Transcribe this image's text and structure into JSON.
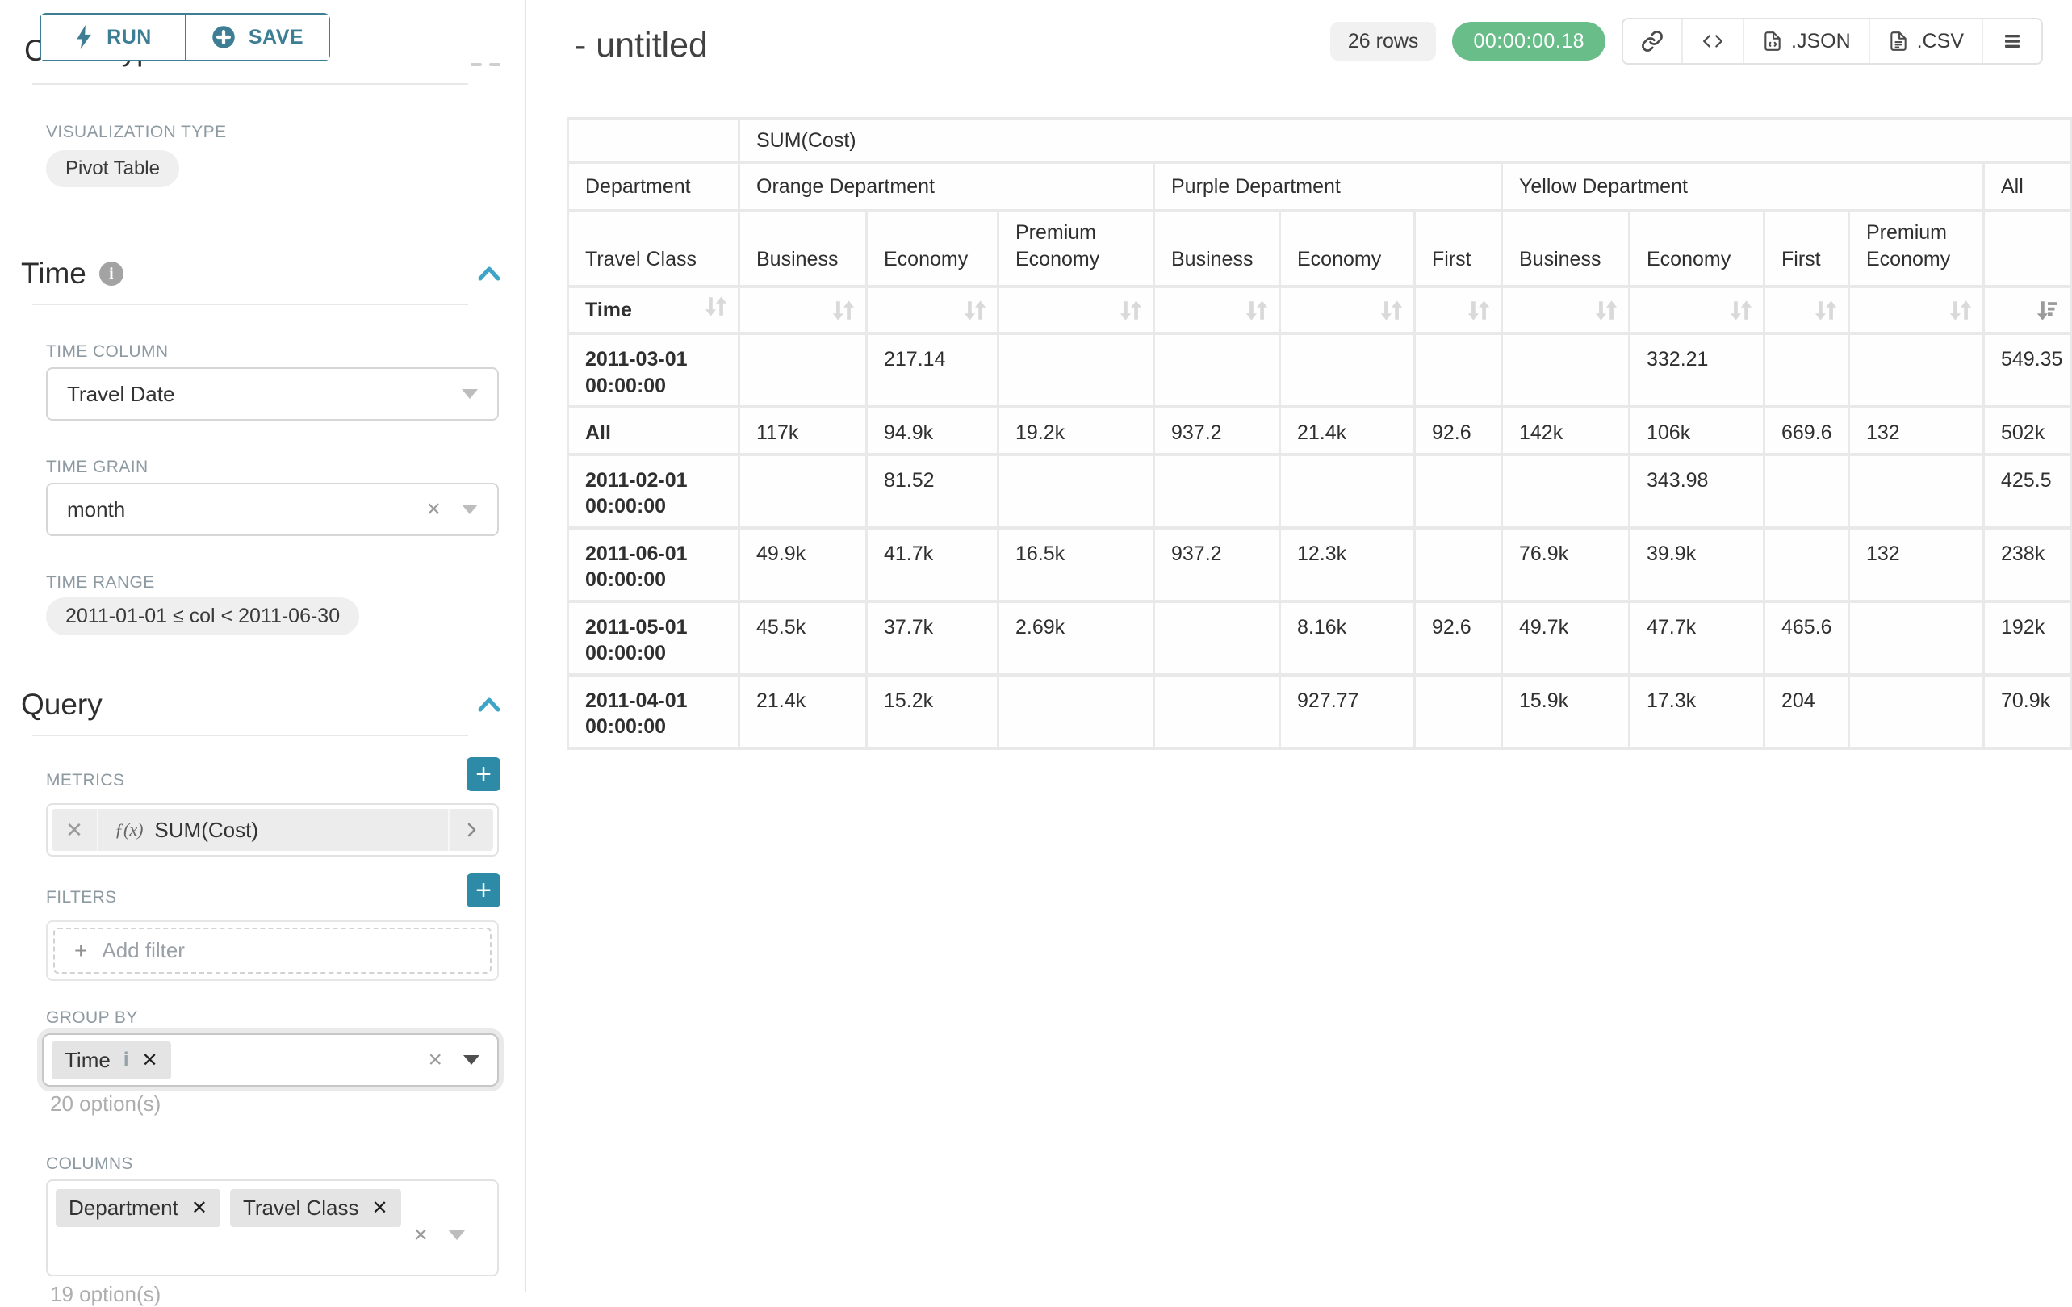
{
  "colors": {
    "accent_teal": "#2e8ba8",
    "button_teal": "#3e7e95",
    "timer_green": "#69bd89",
    "chevron_teal": "#3fa5c6"
  },
  "sidebar": {
    "run_label": "RUN",
    "save_label": "SAVE",
    "chart_type_heading": "Chart Type",
    "viz_type_label": "VISUALIZATION TYPE",
    "viz_type_value": "Pivot Table",
    "time_section": "Time",
    "time_column_label": "TIME COLUMN",
    "time_column_value": "Travel Date",
    "time_grain_label": "TIME GRAIN",
    "time_grain_value": "month",
    "time_range_label": "TIME RANGE",
    "time_range_value": "2011-01-01 ≤ col < 2011-06-30",
    "query_section": "Query",
    "metrics_label": "METRICS",
    "metric_fx": "ƒ(x)",
    "metric_value": "SUM(Cost)",
    "filters_label": "FILTERS",
    "add_filter_label": "Add filter",
    "group_by_label": "GROUP BY",
    "group_by_chip": "Time",
    "group_by_info": "i",
    "group_by_options": "20 option(s)",
    "columns_label": "COLUMNS",
    "columns_chips": [
      "Department",
      "Travel Class"
    ],
    "columns_options": "19 option(s)"
  },
  "header": {
    "title": "- untitled",
    "rows_badge": "26 rows",
    "timer": "00:00:00.18",
    "json_label": ".JSON",
    "csv_label": ".CSV"
  },
  "pivot": {
    "metric": "SUM(Cost)",
    "dept_row": [
      "Department",
      "Orange Department",
      "Purple Department",
      "Yellow Department",
      "All"
    ],
    "class_row": [
      "Travel Class",
      "Business",
      "Economy",
      "Premium Economy",
      "Business",
      "Economy",
      "First",
      "Business",
      "Economy",
      "First",
      "Premium Economy",
      ""
    ],
    "time_label": "Time",
    "rows": [
      {
        "label": "2011-03-01 00:00:00",
        "values": [
          "",
          "217.14",
          "",
          "",
          "",
          "",
          "",
          "332.21",
          "",
          "",
          "549.35"
        ]
      },
      {
        "label": "All",
        "values": [
          "117k",
          "94.9k",
          "19.2k",
          "937.2",
          "21.4k",
          "92.6",
          "142k",
          "106k",
          "669.6",
          "132",
          "502k"
        ]
      },
      {
        "label": "2011-02-01 00:00:00",
        "values": [
          "",
          "81.52",
          "",
          "",
          "",
          "",
          "",
          "343.98",
          "",
          "",
          "425.5"
        ]
      },
      {
        "label": "2011-06-01 00:00:00",
        "values": [
          "49.9k",
          "41.7k",
          "16.5k",
          "937.2",
          "12.3k",
          "",
          "76.9k",
          "39.9k",
          "",
          "132",
          "238k"
        ]
      },
      {
        "label": "2011-05-01 00:00:00",
        "values": [
          "45.5k",
          "37.7k",
          "2.69k",
          "",
          "8.16k",
          "92.6",
          "49.7k",
          "47.7k",
          "465.6",
          "",
          "192k"
        ]
      },
      {
        "label": "2011-04-01 00:00:00",
        "values": [
          "21.4k",
          "15.2k",
          "",
          "",
          "927.77",
          "",
          "15.9k",
          "17.3k",
          "204",
          "",
          "70.9k"
        ]
      }
    ]
  }
}
